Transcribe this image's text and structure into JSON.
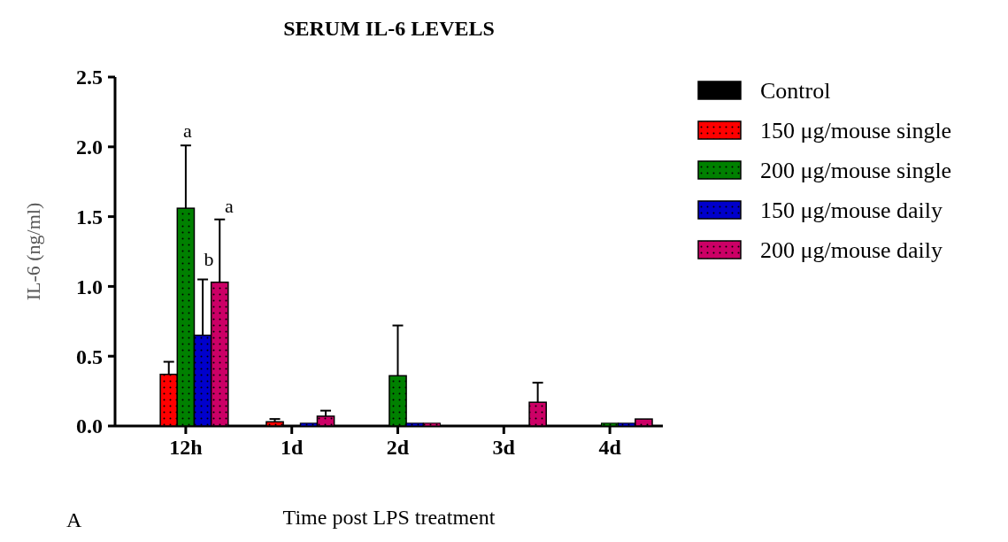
{
  "chart_data": {
    "type": "bar",
    "title": "SERUM IL-6 LEVELS",
    "xlabel": "Time post LPS treatment",
    "ylabel": "IL-6 (ng/ml)",
    "categories": [
      "12h",
      "1d",
      "2d",
      "3d",
      "4d"
    ],
    "series": [
      {
        "name": "Control",
        "color": "#000000",
        "values": [
          0,
          0,
          0,
          0,
          0
        ]
      },
      {
        "name": "150 μg/mouse single",
        "color": "#ff0000",
        "values": [
          0.37,
          0.03,
          0,
          0,
          0
        ],
        "errors": [
          0.09,
          0.02,
          null,
          null,
          null
        ]
      },
      {
        "name": "200 μg/mouse single",
        "color": "#008000",
        "values": [
          1.56,
          0,
          0.36,
          0,
          0.02
        ],
        "errors": [
          0.45,
          null,
          0.36,
          null,
          null
        ]
      },
      {
        "name": "150 μg/mouse daily",
        "color": "#0000cc",
        "values": [
          0.65,
          0.02,
          0.02,
          0,
          0.02
        ],
        "errors": [
          0.4,
          null,
          null,
          null,
          null
        ]
      },
      {
        "name": "200 μg/mouse daily",
        "color": "#cc0066",
        "values": [
          1.03,
          0.07,
          0.02,
          0.17,
          0.05
        ],
        "errors": [
          0.45,
          0.04,
          null,
          0.14,
          null
        ]
      }
    ],
    "ylim": [
      0,
      2.5
    ],
    "yticks": [
      {
        "value": 0,
        "label": "0.0"
      },
      {
        "value": 0.5,
        "label": "0.5"
      },
      {
        "value": 1,
        "label": "1.0"
      },
      {
        "value": 1.5,
        "label": "1.5"
      },
      {
        "value": 2,
        "label": "2.0"
      },
      {
        "value": 2.5,
        "label": "2.5"
      }
    ],
    "legend": "right",
    "grid": false,
    "annotations": [
      "a",
      "b",
      "a",
      "A"
    ]
  }
}
